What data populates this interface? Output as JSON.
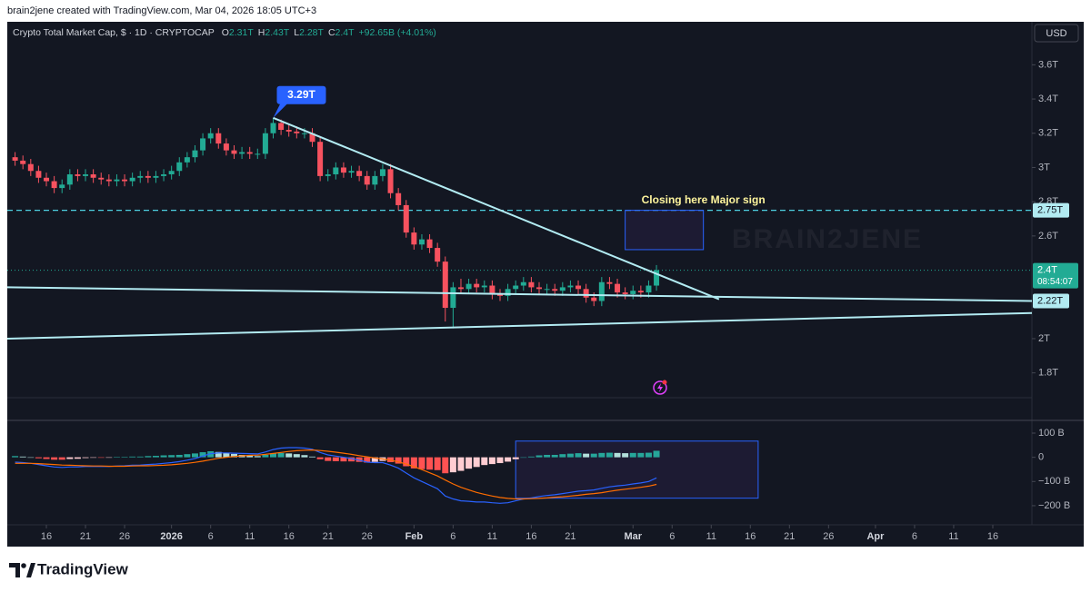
{
  "chart_data": {
    "type": "candlestick",
    "header": "brain2jene created with TradingView.com, Mar 04, 2026 18:05 UTC+3",
    "title": "Crypto Total Market Cap, $ · 1D · CRYPTOCAP",
    "ohlc_legend": [
      {
        "label": "O",
        "value": "2.31T"
      },
      {
        "label": "H",
        "value": "2.43T"
      },
      {
        "label": "L",
        "value": "2.28T"
      },
      {
        "label": "C",
        "value": "2.4T"
      }
    ],
    "change": "+92.65B (+4.01%)",
    "currency": "USD",
    "watermark": "BRAIN2JENE",
    "brand": "TradingView",
    "colors": {
      "up": "#22ab94",
      "down": "#f7525f"
    },
    "x": [
      "2025-12-12",
      "2025-12-13",
      "2025-12-14",
      "2025-12-15",
      "2025-12-16",
      "2025-12-17",
      "2025-12-18",
      "2025-12-19",
      "2025-12-20",
      "2025-12-21",
      "2025-12-22",
      "2025-12-23",
      "2025-12-24",
      "2025-12-25",
      "2025-12-26",
      "2025-12-27",
      "2025-12-28",
      "2025-12-29",
      "2025-12-30",
      "2025-12-31",
      "2026-01-01",
      "2026-01-02",
      "2026-01-03",
      "2026-01-04",
      "2026-01-05",
      "2026-01-06",
      "2026-01-07",
      "2026-01-08",
      "2026-01-09",
      "2026-01-10",
      "2026-01-11",
      "2026-01-12",
      "2026-01-13",
      "2026-01-14",
      "2026-01-15",
      "2026-01-16",
      "2026-01-17",
      "2026-01-18",
      "2026-01-19",
      "2026-01-20",
      "2026-01-21",
      "2026-01-22",
      "2026-01-23",
      "2026-01-24",
      "2026-01-25",
      "2026-01-26",
      "2026-01-27",
      "2026-01-28",
      "2026-01-29",
      "2026-01-30",
      "2026-01-31",
      "2026-02-01",
      "2026-02-02",
      "2026-02-03",
      "2026-02-04",
      "2026-02-05",
      "2026-02-06",
      "2026-02-07",
      "2026-02-08",
      "2026-02-09",
      "2026-02-10",
      "2026-02-11",
      "2026-02-12",
      "2026-02-13",
      "2026-02-14",
      "2026-02-15",
      "2026-02-16",
      "2026-02-17",
      "2026-02-18",
      "2026-02-19",
      "2026-02-20",
      "2026-02-21",
      "2026-02-22",
      "2026-02-23",
      "2026-02-24",
      "2026-02-25",
      "2026-02-26",
      "2026-02-27",
      "2026-02-28",
      "2026-03-01",
      "2026-03-02",
      "2026-03-03",
      "2026-03-04"
    ],
    "open": [
      3.06,
      3.04,
      3.02,
      2.98,
      2.94,
      2.92,
      2.88,
      2.9,
      2.96,
      2.95,
      2.96,
      2.94,
      2.93,
      2.92,
      2.93,
      2.92,
      2.94,
      2.95,
      2.94,
      2.95,
      2.96,
      2.98,
      3.03,
      3.06,
      3.1,
      3.17,
      3.2,
      3.14,
      3.1,
      3.08,
      3.09,
      3.08,
      3.08,
      3.2,
      3.26,
      3.22,
      3.21,
      3.2,
      3.2,
      3.15,
      2.95,
      2.96,
      3.0,
      2.97,
      2.98,
      2.95,
      2.9,
      2.95,
      2.99,
      2.85,
      2.78,
      2.62,
      2.55,
      2.58,
      2.53,
      2.45,
      2.18,
      2.3,
      2.29,
      2.32,
      2.3,
      2.31,
      2.26,
      2.25,
      2.29,
      2.31,
      2.33,
      2.3,
      2.29,
      2.29,
      2.28,
      2.3,
      2.31,
      2.29,
      2.24,
      2.22,
      2.33,
      2.32,
      2.27,
      2.26,
      2.28,
      2.27,
      2.31
    ],
    "high": [
      3.09,
      3.07,
      3.05,
      3.01,
      2.97,
      2.95,
      2.93,
      2.99,
      2.99,
      2.99,
      2.99,
      2.97,
      2.96,
      2.96,
      2.96,
      2.97,
      2.98,
      2.98,
      2.98,
      2.99,
      3.01,
      3.06,
      3.09,
      3.13,
      3.2,
      3.23,
      3.23,
      3.17,
      3.13,
      3.12,
      3.12,
      3.11,
      3.23,
      3.29,
      3.28,
      3.25,
      3.24,
      3.23,
      3.23,
      3.18,
      2.99,
      3.03,
      3.03,
      3.01,
      3.01,
      2.98,
      2.98,
      3.02,
      3.02,
      2.88,
      2.81,
      2.65,
      2.61,
      2.61,
      2.56,
      2.48,
      2.33,
      2.35,
      2.35,
      2.35,
      2.34,
      2.34,
      2.29,
      2.32,
      2.34,
      2.36,
      2.36,
      2.33,
      2.32,
      2.32,
      2.33,
      2.34,
      2.34,
      2.32,
      2.27,
      2.36,
      2.36,
      2.35,
      2.3,
      2.31,
      2.31,
      2.34,
      2.43
    ],
    "low": [
      3.01,
      2.99,
      2.95,
      2.91,
      2.89,
      2.85,
      2.85,
      2.87,
      2.92,
      2.92,
      2.91,
      2.9,
      2.89,
      2.89,
      2.89,
      2.89,
      2.91,
      2.91,
      2.91,
      2.92,
      2.93,
      2.95,
      3.0,
      3.03,
      3.07,
      3.14,
      3.11,
      3.07,
      3.05,
      3.05,
      3.05,
      3.05,
      3.05,
      3.17,
      3.19,
      3.18,
      3.17,
      3.17,
      3.12,
      2.92,
      2.92,
      2.93,
      2.94,
      2.94,
      2.92,
      2.87,
      2.87,
      2.92,
      2.82,
      2.75,
      2.59,
      2.52,
      2.52,
      2.5,
      2.42,
      2.1,
      2.06,
      2.26,
      2.26,
      2.27,
      2.27,
      2.23,
      2.22,
      2.22,
      2.26,
      2.28,
      2.27,
      2.26,
      2.26,
      2.25,
      2.25,
      2.27,
      2.26,
      2.21,
      2.19,
      2.19,
      2.29,
      2.24,
      2.23,
      2.23,
      2.24,
      2.24,
      2.28
    ],
    "close": [
      3.04,
      3.02,
      2.98,
      2.94,
      2.92,
      2.88,
      2.9,
      2.96,
      2.95,
      2.96,
      2.94,
      2.93,
      2.92,
      2.93,
      2.92,
      2.94,
      2.95,
      2.94,
      2.95,
      2.96,
      2.98,
      3.03,
      3.06,
      3.1,
      3.17,
      3.2,
      3.14,
      3.1,
      3.08,
      3.09,
      3.08,
      3.08,
      3.2,
      3.26,
      3.22,
      3.21,
      3.2,
      3.2,
      3.15,
      2.95,
      2.96,
      3.0,
      2.97,
      2.98,
      2.95,
      2.9,
      2.95,
      2.99,
      2.85,
      2.78,
      2.62,
      2.55,
      2.58,
      2.53,
      2.45,
      2.18,
      2.3,
      2.29,
      2.32,
      2.3,
      2.31,
      2.26,
      2.25,
      2.29,
      2.31,
      2.33,
      2.3,
      2.29,
      2.29,
      2.28,
      2.3,
      2.31,
      2.29,
      2.24,
      2.22,
      2.33,
      2.32,
      2.27,
      2.26,
      2.28,
      2.27,
      2.31,
      2.4
    ],
    "xlim": [
      "2025-12-11",
      "2026-04-21"
    ],
    "xticks": [
      {
        "value": "2025-12-16",
        "label": "16"
      },
      {
        "value": "2025-12-21",
        "label": "21"
      },
      {
        "value": "2025-12-26",
        "label": "26"
      },
      {
        "value": "2026-01-01",
        "label": "2026"
      },
      {
        "value": "2026-01-06",
        "label": "6"
      },
      {
        "value": "2026-01-11",
        "label": "11"
      },
      {
        "value": "2026-01-16",
        "label": "16"
      },
      {
        "value": "2026-01-21",
        "label": "21"
      },
      {
        "value": "2026-01-26",
        "label": "26"
      },
      {
        "value": "2026-02-01",
        "label": "Feb"
      },
      {
        "value": "2026-02-06",
        "label": "6"
      },
      {
        "value": "2026-02-11",
        "label": "11"
      },
      {
        "value": "2026-02-16",
        "label": "16"
      },
      {
        "value": "2026-02-21",
        "label": "21"
      },
      {
        "value": "2026-03-01",
        "label": "Mar"
      },
      {
        "value": "2026-03-06",
        "label": "6"
      },
      {
        "value": "2026-03-11",
        "label": "11"
      },
      {
        "value": "2026-03-16",
        "label": "16"
      },
      {
        "value": "2026-03-21",
        "label": "21"
      },
      {
        "value": "2026-03-26",
        "label": "26"
      },
      {
        "value": "2026-04-01",
        "label": "Apr"
      },
      {
        "value": "2026-04-06",
        "label": "6"
      },
      {
        "value": "2026-04-11",
        "label": "11"
      },
      {
        "value": "2026-04-16",
        "label": "16"
      }
    ],
    "ylim": [
      1.655,
      3.846
    ],
    "yticks": [
      {
        "value": 1.8,
        "label": "1.8T"
      },
      {
        "value": 2,
        "label": "2T"
      },
      {
        "value": 2.6,
        "label": "2.6T"
      },
      {
        "value": 2.8,
        "label": "2.8T"
      },
      {
        "value": 3,
        "label": "3T"
      },
      {
        "value": 3.2,
        "label": "3.2T"
      },
      {
        "value": 3.4,
        "label": "3.4T"
      },
      {
        "value": 3.6,
        "label": "3.6T"
      }
    ],
    "last_price": {
      "value": 2.4,
      "label": "2.4T",
      "countdown": "08:54:07",
      "color": "#22ab94"
    },
    "price_labels": [
      {
        "value": 2.75,
        "label": "2.75T",
        "line": "dashed"
      },
      {
        "value": 2.22,
        "label": "2.22T"
      }
    ],
    "peak_label": {
      "x": "2026-01-14",
      "value": 3.29,
      "label": "3.29T",
      "color": "#2962ff"
    },
    "note": "Closing here Major sign",
    "trendlines": [
      {
        "x": [
          "2026-01-14",
          "2026-03-12"
        ],
        "y": [
          3.29,
          2.23
        ]
      },
      {
        "x": [
          "2025-12-11",
          "2026-04-21"
        ],
        "y": [
          2.3,
          2.22
        ]
      },
      {
        "x": [
          "2025-12-11",
          "2026-04-21"
        ],
        "y": [
          2.0,
          2.15
        ]
      }
    ],
    "line_color": "#b2ebf2",
    "rectangles": [
      {
        "x": [
          "2026-02-28",
          "2026-03-10"
        ],
        "y": [
          2.75,
          2.52
        ]
      }
    ],
    "macd": {
      "ylim": [
        -249,
        145
      ],
      "yticks": [
        {
          "value": -200,
          "label": "−200 B"
        },
        {
          "value": -100,
          "label": "−100 B"
        },
        0,
        {
          "value": 100,
          "label": "100 B"
        }
      ],
      "colors": {
        "macd": "#2962ff",
        "signal": "#ff6d00",
        "pos_up": "#26a69a",
        "pos_down": "#b2dfdb",
        "neg_down": "#ff5252",
        "neg_up": "#ffcdd2"
      },
      "histogram": [
        5,
        3,
        0,
        -4,
        -7,
        -10,
        -10,
        -7,
        -6,
        -3,
        -2,
        -2,
        -1,
        1,
        2,
        3,
        3,
        5,
        6,
        8,
        9,
        10,
        13,
        16,
        21,
        25,
        22,
        18,
        14,
        10,
        7,
        5,
        10,
        16,
        18,
        16,
        13,
        9,
        3,
        -8,
        -15,
        -16,
        -17,
        -17,
        -19,
        -22,
        -19,
        -15,
        -20,
        -26,
        -37,
        -46,
        -49,
        -51,
        -53,
        -66,
        -62,
        -56,
        -47,
        -40,
        -32,
        -28,
        -24,
        -18,
        -8,
        0,
        3,
        8,
        10,
        10,
        13,
        15,
        17,
        15,
        15,
        18,
        19,
        18,
        17,
        18,
        18,
        19,
        27
      ],
      "macd_line": [
        -20,
        -22,
        -25,
        -30,
        -35,
        -40,
        -42,
        -40,
        -40,
        -38,
        -38,
        -38,
        -38,
        -36,
        -35,
        -33,
        -32,
        -30,
        -28,
        -25,
        -22,
        -18,
        -12,
        -5,
        5,
        15,
        18,
        18,
        17,
        16,
        15,
        14,
        22,
        32,
        38,
        40,
        40,
        38,
        33,
        20,
        10,
        5,
        0,
        -5,
        -12,
        -20,
        -22,
        -22,
        -32,
        -45,
        -65,
        -85,
        -100,
        -115,
        -130,
        -160,
        -172,
        -180,
        -182,
        -185,
        -185,
        -188,
        -190,
        -188,
        -180,
        -172,
        -168,
        -162,
        -158,
        -155,
        -150,
        -145,
        -140,
        -138,
        -135,
        -128,
        -122,
        -118,
        -115,
        -110,
        -106,
        -100,
        -85
      ],
      "signal_line": [
        -25,
        -25,
        -25,
        -26,
        -28,
        -30,
        -32,
        -33,
        -34,
        -35,
        -36,
        -36,
        -37,
        -37,
        -37,
        -36,
        -35,
        -35,
        -34,
        -33,
        -31,
        -28,
        -25,
        -21,
        -16,
        -10,
        -4,
        0,
        3,
        6,
        8,
        9,
        12,
        16,
        20,
        24,
        27,
        29,
        30,
        28,
        25,
        21,
        17,
        12,
        7,
        2,
        -3,
        -7,
        -12,
        -19,
        -28,
        -39,
        -51,
        -64,
        -77,
        -94,
        -110,
        -124,
        -135,
        -145,
        -153,
        -160,
        -166,
        -170,
        -172,
        -172,
        -171,
        -170,
        -168,
        -165,
        -163,
        -160,
        -157,
        -153,
        -150,
        -146,
        -141,
        -136,
        -132,
        -128,
        -124,
        -119,
        -112
      ],
      "boxes": [
        {
          "x": [
            "2026-02-14",
            "2026-03-17"
          ],
          "y": [
            67,
            -169
          ]
        }
      ]
    }
  }
}
